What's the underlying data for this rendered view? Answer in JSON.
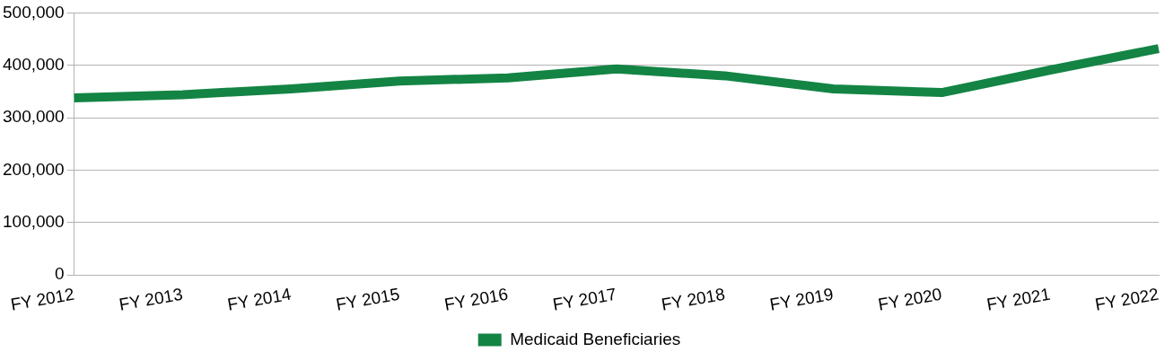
{
  "chart_data": {
    "type": "line",
    "categories": [
      "FY 2012",
      "FY 2013",
      "FY 2014",
      "FY 2015",
      "FY 2016",
      "FY 2017",
      "FY 2018",
      "FY 2019",
      "FY 2020",
      "FY 2021",
      "FY 2022"
    ],
    "series": [
      {
        "name": "Medicaid Beneficiaries",
        "color": "#138444",
        "values": [
          338000,
          344000,
          355000,
          370000,
          376000,
          393000,
          380000,
          355000,
          348000,
          391000,
          432000
        ]
      }
    ],
    "ylim": [
      0,
      500000
    ],
    "yticks": [
      0,
      {
        "value": 100000,
        "label": "100,000"
      },
      {
        "value": 200000,
        "label": "200,000"
      },
      {
        "value": 300000,
        "label": "300,000"
      },
      {
        "value": 400000,
        "label": "400,000"
      },
      {
        "value": 500000,
        "label": "500,000"
      }
    ],
    "grid": "y",
    "legend": "bottom",
    "marker": "none",
    "line_style": "solid"
  }
}
